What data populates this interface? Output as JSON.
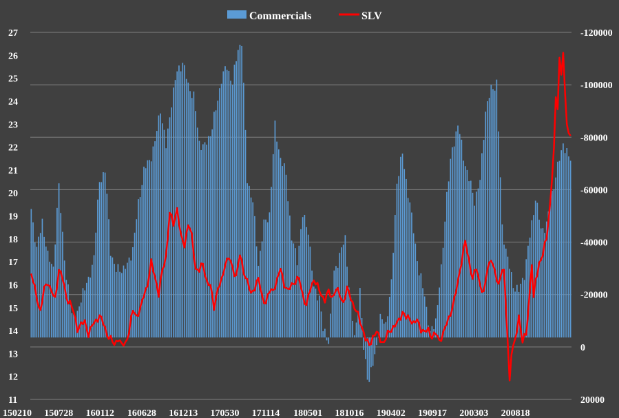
{
  "chart_data": {
    "type": "bar",
    "legend": [
      {
        "name": "Commercials",
        "color": "#5b9bd5",
        "kind": "bar"
      },
      {
        "name": "SLV",
        "color": "#ff0000",
        "kind": "line"
      }
    ],
    "left_axis": {
      "min": 11,
      "max": 27,
      "ticks": [
        "27",
        "26",
        "25",
        "24",
        "23",
        "22",
        "21",
        "20",
        "19",
        "18",
        "17",
        "16",
        "15",
        "14",
        "13",
        "12",
        "11"
      ]
    },
    "right_axis": {
      "min": -120000,
      "max": 20000,
      "reversed": true,
      "ticks": [
        "-120000",
        "-100000",
        "-80000",
        "-60000",
        "-40000",
        "-20000",
        "0",
        "20000"
      ]
    },
    "x_tick_labels": [
      "150210",
      "150728",
      "160112",
      "160628",
      "161213",
      "170530",
      "171114",
      "180501",
      "181016",
      "190402",
      "190917",
      "200303",
      "200818"
    ],
    "gridlines": true,
    "colors": {
      "background": "#404040",
      "bars": "#5b9bd5",
      "line": "#ff0000",
      "grid": "#808080"
    },
    "series": [
      {
        "name": "Commercials",
        "kind": "bar",
        "anchors": [
          [
            0,
            19.3
          ],
          [
            3,
            17.5
          ],
          [
            6,
            18.8
          ],
          [
            9,
            17.2
          ],
          [
            12,
            16.8
          ],
          [
            15,
            20.3
          ],
          [
            19,
            16.2
          ],
          [
            22,
            14.8
          ],
          [
            25,
            14.6
          ],
          [
            28,
            15.8
          ],
          [
            31,
            16.1
          ],
          [
            34,
            17.3
          ],
          [
            37,
            20.5
          ],
          [
            40,
            21.0
          ],
          [
            43,
            17.5
          ],
          [
            46,
            16.6
          ],
          [
            49,
            16.7
          ],
          [
            52,
            16.8
          ],
          [
            55,
            17.6
          ],
          [
            58,
            19.5
          ],
          [
            61,
            21.0
          ],
          [
            64,
            21.4
          ],
          [
            67,
            22.2
          ],
          [
            70,
            23.7
          ],
          [
            73,
            22.0
          ],
          [
            76,
            24.0
          ],
          [
            79,
            25.3
          ],
          [
            82,
            25.7
          ],
          [
            85,
            24.7
          ],
          [
            88,
            24.2
          ],
          [
            91,
            22.2
          ],
          [
            94,
            22.0
          ],
          [
            97,
            22.6
          ],
          [
            100,
            23.6
          ],
          [
            103,
            25.0
          ],
          [
            106,
            25.5
          ],
          [
            109,
            24.8
          ],
          [
            112,
            26.3
          ],
          [
            114,
            26.6
          ],
          [
            117,
            20.6
          ],
          [
            120,
            19.6
          ],
          [
            123,
            16.9
          ],
          [
            126,
            18.6
          ],
          [
            129,
            19.1
          ],
          [
            132,
            22.9
          ],
          [
            135,
            21.5
          ],
          [
            138,
            20.8
          ],
          [
            141,
            18.0
          ],
          [
            144,
            17.1
          ],
          [
            147,
            19.0
          ],
          [
            150,
            18.4
          ],
          [
            153,
            15.8
          ],
          [
            156,
            15.5
          ],
          [
            158,
            14.0
          ],
          [
            161,
            13.6
          ],
          [
            164,
            16.5
          ],
          [
            167,
            17.3
          ],
          [
            170,
            18.0
          ],
          [
            172,
            16.0
          ],
          [
            175,
            13.7
          ],
          [
            178,
            15.7
          ],
          [
            180,
            13.2
          ],
          [
            182,
            12.1
          ],
          [
            183,
            11.8
          ],
          [
            186,
            12.9
          ],
          [
            189,
            14.5
          ],
          [
            192,
            14.3
          ],
          [
            195,
            16.0
          ],
          [
            198,
            20.5
          ],
          [
            201,
            21.7
          ],
          [
            204,
            20.0
          ],
          [
            207,
            18.4
          ],
          [
            210,
            16.5
          ],
          [
            213,
            15.6
          ],
          [
            216,
            13.8
          ],
          [
            219,
            14.5
          ],
          [
            222,
            16.6
          ],
          [
            225,
            20.0
          ],
          [
            228,
            21.9
          ],
          [
            231,
            23.0
          ],
          [
            234,
            21.6
          ],
          [
            237,
            20.6
          ],
          [
            240,
            19.7
          ],
          [
            243,
            20.5
          ],
          [
            246,
            23.6
          ],
          [
            249,
            24.5
          ],
          [
            252,
            24.8
          ],
          [
            255,
            18.5
          ],
          [
            258,
            17.1
          ],
          [
            261,
            16.0
          ],
          [
            264,
            15.7
          ],
          [
            267,
            16.5
          ],
          [
            270,
            18.1
          ],
          [
            273,
            19.8
          ],
          [
            276,
            18.4
          ],
          [
            279,
            18.6
          ],
          [
            282,
            20.0
          ],
          [
            285,
            21.1
          ],
          [
            288,
            22.2
          ],
          [
            291,
            21.5
          ]
        ],
        "count": 293
      },
      {
        "name": "SLV",
        "kind": "line",
        "anchors": [
          [
            0,
            -28000
          ],
          [
            2,
            -22000
          ],
          [
            3,
            -19000
          ],
          [
            5,
            -13500
          ],
          [
            7,
            -22000
          ],
          [
            9,
            -25000
          ],
          [
            11,
            -21000
          ],
          [
            13,
            -18000
          ],
          [
            15,
            -30000
          ],
          [
            17,
            -26000
          ],
          [
            19,
            -19000
          ],
          [
            21,
            -17000
          ],
          [
            23,
            -13000
          ],
          [
            25,
            -7000
          ],
          [
            27,
            -8500
          ],
          [
            29,
            -9500
          ],
          [
            31,
            -5000
          ],
          [
            33,
            -8000
          ],
          [
            35,
            -10000
          ],
          [
            37,
            -12000
          ],
          [
            39,
            -9000
          ],
          [
            41,
            -5000
          ],
          [
            43,
            -3000
          ],
          [
            45,
            -800
          ],
          [
            47,
            -3500
          ],
          [
            49,
            -500
          ],
          [
            51,
            -1500
          ],
          [
            53,
            -6000
          ],
          [
            55,
            -14000
          ],
          [
            57,
            -12000
          ],
          [
            59,
            -14000
          ],
          [
            61,
            -20000
          ],
          [
            63,
            -24000
          ],
          [
            65,
            -32000
          ],
          [
            67,
            -27000
          ],
          [
            69,
            -20000
          ],
          [
            71,
            -29000
          ],
          [
            73,
            -35000
          ],
          [
            75,
            -51000
          ],
          [
            77,
            -47000
          ],
          [
            79,
            -53000
          ],
          [
            81,
            -42000
          ],
          [
            83,
            -39000
          ],
          [
            85,
            -47000
          ],
          [
            87,
            -42000
          ],
          [
            89,
            -30000
          ],
          [
            91,
            -29000
          ],
          [
            93,
            -32000
          ],
          [
            95,
            -25000
          ],
          [
            97,
            -23000
          ],
          [
            99,
            -15500
          ],
          [
            101,
            -22000
          ],
          [
            103,
            -25000
          ],
          [
            105,
            -32000
          ],
          [
            107,
            -34000
          ],
          [
            109,
            -30000
          ],
          [
            111,
            -27000
          ],
          [
            113,
            -35000
          ],
          [
            115,
            -29000
          ],
          [
            117,
            -25000
          ],
          [
            119,
            -20000
          ],
          [
            121,
            -23000
          ],
          [
            123,
            -26000
          ],
          [
            125,
            -19000
          ],
          [
            127,
            -17000
          ],
          [
            129,
            -21000
          ],
          [
            131,
            -22000
          ],
          [
            133,
            -25000
          ],
          [
            135,
            -30000
          ],
          [
            137,
            -24000
          ],
          [
            139,
            -21000
          ],
          [
            141,
            -24000
          ],
          [
            143,
            -25000
          ],
          [
            145,
            -26000
          ],
          [
            147,
            -20000
          ],
          [
            149,
            -15500
          ],
          [
            151,
            -22000
          ],
          [
            153,
            -26000
          ],
          [
            155,
            -23000
          ],
          [
            157,
            -20000
          ],
          [
            159,
            -18000
          ],
          [
            161,
            -21000
          ],
          [
            163,
            -19000
          ],
          [
            165,
            -22000
          ],
          [
            167,
            -20000
          ],
          [
            169,
            -17000
          ],
          [
            171,
            -22000
          ],
          [
            173,
            -19000
          ],
          [
            175,
            -15000
          ],
          [
            177,
            -12000
          ],
          [
            179,
            -8000
          ],
          [
            181,
            -3000
          ],
          [
            183,
            -500
          ],
          [
            185,
            -4000
          ],
          [
            187,
            -5500
          ],
          [
            189,
            -3000
          ],
          [
            191,
            -1500
          ],
          [
            193,
            -5000
          ],
          [
            195,
            -7000
          ],
          [
            197,
            -8000
          ],
          [
            199,
            -10000
          ],
          [
            201,
            -13500
          ],
          [
            203,
            -11000
          ],
          [
            205,
            -11000
          ],
          [
            207,
            -9000
          ],
          [
            209,
            -10000
          ],
          [
            211,
            -7000
          ],
          [
            213,
            -5500
          ],
          [
            215,
            -6500
          ],
          [
            217,
            -4000
          ],
          [
            219,
            -5000
          ],
          [
            221,
            -2500
          ],
          [
            223,
            -5000
          ],
          [
            225,
            -9000
          ],
          [
            227,
            -13000
          ],
          [
            229,
            -17500
          ],
          [
            231,
            -25000
          ],
          [
            233,
            -33000
          ],
          [
            235,
            -40000
          ],
          [
            237,
            -33000
          ],
          [
            239,
            -26000
          ],
          [
            241,
            -30000
          ],
          [
            243,
            -24000
          ],
          [
            245,
            -20000
          ],
          [
            247,
            -30000
          ],
          [
            249,
            -34000
          ],
          [
            251,
            -28000
          ],
          [
            253,
            -24000
          ],
          [
            255,
            -30000
          ],
          [
            256,
            -28000
          ],
          [
            257,
            -15000
          ],
          [
            258,
            -2000
          ],
          [
            259,
            13000
          ],
          [
            260,
            2000
          ],
          [
            262,
            -2000
          ],
          [
            264,
            -12000
          ],
          [
            266,
            -2000
          ],
          [
            268,
            -5000
          ],
          [
            270,
            -22000
          ],
          [
            271,
            -32000
          ],
          [
            272,
            -18000
          ],
          [
            273,
            -25000
          ],
          [
            275,
            -32000
          ],
          [
            277,
            -35000
          ],
          [
            279,
            -42000
          ],
          [
            281,
            -55000
          ],
          [
            283,
            -75000
          ],
          [
            284,
            -95000
          ],
          [
            285,
            -92000
          ],
          [
            286,
            -110000
          ],
          [
            287,
            -104000
          ],
          [
            288,
            -112000
          ],
          [
            289,
            -96000
          ],
          [
            290,
            -86000
          ],
          [
            291,
            -82000
          ],
          [
            292,
            -80000
          ]
        ],
        "count": 293
      }
    ]
  }
}
